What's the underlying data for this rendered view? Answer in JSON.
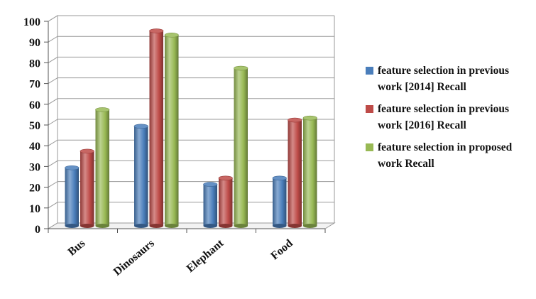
{
  "chart_data": {
    "type": "bar",
    "title": "",
    "xlabel": "",
    "ylabel": "",
    "ylim": [
      0,
      100
    ],
    "yticks": [
      0,
      10,
      20,
      30,
      40,
      50,
      60,
      70,
      80,
      90,
      100
    ],
    "grid": true,
    "legend_position": "right",
    "categories": [
      "Bus",
      "Dinosaurs",
      "Elephant",
      "Food"
    ],
    "series": [
      {
        "name": "feature selection in previous work [2014] Recall",
        "color": "#4a7ebb",
        "values": [
          28,
          48,
          20,
          23
        ]
      },
      {
        "name": "feature selection in previous work [2016] Recall",
        "color": "#be4b48",
        "values": [
          36,
          94,
          23,
          51
        ]
      },
      {
        "name": "feature selection in proposed work  Recall",
        "color": "#98b954",
        "values": [
          56,
          92,
          76,
          52
        ]
      }
    ]
  }
}
